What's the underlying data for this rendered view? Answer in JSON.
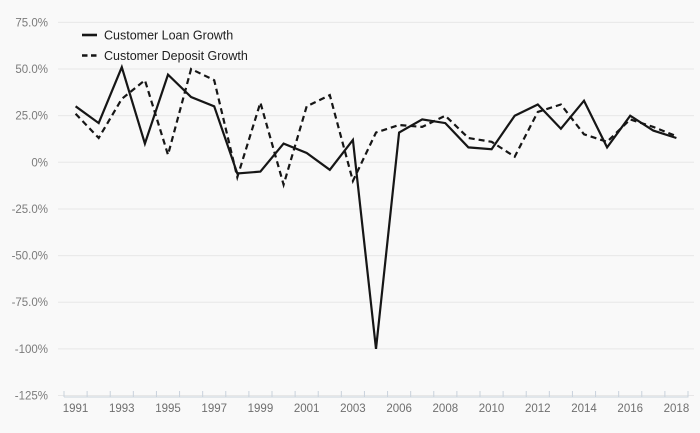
{
  "chart_data": {
    "type": "line",
    "title": "",
    "xlabel": "",
    "ylabel": "",
    "categories": [
      "1991",
      "1992",
      "1993",
      "1994",
      "1995",
      "1996",
      "1997",
      "1998",
      "1999",
      "2000",
      "2001",
      "2002",
      "2003",
      "2005",
      "2006",
      "2007",
      "2008",
      "2009",
      "2010",
      "2011",
      "2012",
      "2013",
      "2014",
      "2015",
      "2016",
      "2017",
      "2018"
    ],
    "series": [
      {
        "name": "Customer Loan Growth",
        "style": "solid",
        "values": [
          30,
          21,
          51,
          10,
          47,
          35,
          30,
          -6,
          -5,
          10,
          5,
          -4,
          12,
          -100,
          16,
          23,
          21,
          8,
          7,
          25,
          31,
          18,
          33,
          8,
          25,
          17,
          13
        ]
      },
      {
        "name": "Customer Deposit Growth",
        "style": "dashed",
        "values": [
          26,
          13,
          34,
          44,
          4,
          50,
          44,
          -8,
          32,
          -12,
          30,
          36,
          -10,
          16,
          20,
          19,
          25,
          13,
          11,
          3,
          27,
          31,
          15,
          11,
          23,
          19,
          14
        ]
      }
    ],
    "ylim": [
      -125,
      75
    ],
    "y_ticks": {
      "labels": [
        "75.0%",
        "50.0%",
        "25.0%",
        "0%",
        "-25.0%",
        "-50.0%",
        "-75.0%",
        "-100%",
        "-125%"
      ],
      "values": [
        75,
        50,
        25,
        0,
        -25,
        -50,
        -75,
        -100,
        -125
      ]
    },
    "x_tick_labels": [
      "1991",
      "1993",
      "1995",
      "1997",
      "1999",
      "2001",
      "2003",
      "2006",
      "2008",
      "2010",
      "2012",
      "2014",
      "2016",
      "2018"
    ],
    "x_label_every": 2,
    "grid": true,
    "legend_position": "top-left",
    "colors": {
      "background": "#f9f9f9",
      "line": "#161616",
      "gridline": "#e7e7e7",
      "axis": "#c9d2dc",
      "tick_label": "#7b7b7b"
    }
  },
  "legend": {
    "items": [
      {
        "label": "Customer Loan Growth"
      },
      {
        "label": "Customer Deposit Growth"
      }
    ]
  }
}
